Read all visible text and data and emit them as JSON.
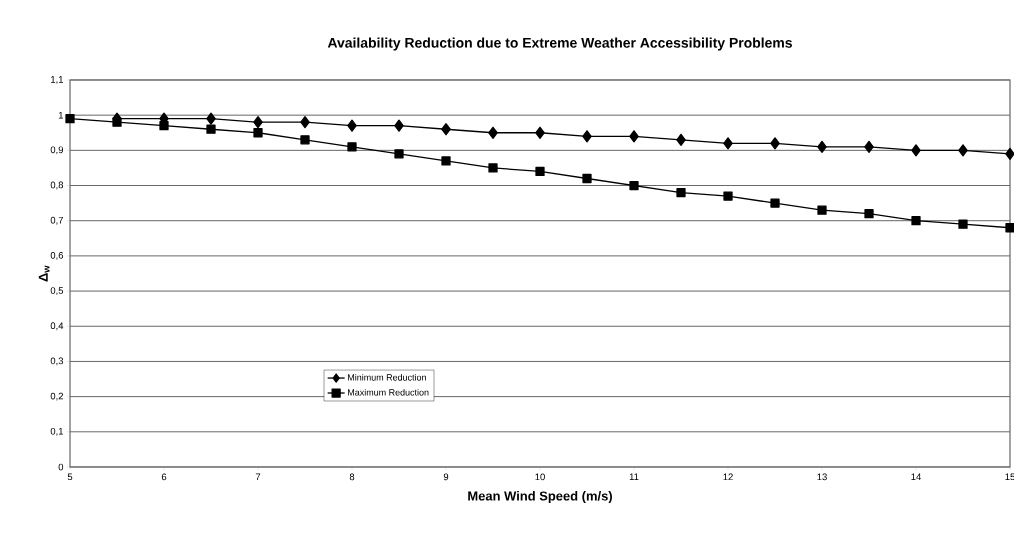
{
  "chart_data": {
    "type": "line",
    "title": "Availability Reduction due to Extreme Weather Accessibility Problems",
    "xlabel": "Mean Wind Speed (m/s)",
    "ylabel": "Δ$_{w}$",
    "x": [
      5,
      5.5,
      6,
      6.5,
      7,
      7.5,
      8,
      8.5,
      9,
      9.5,
      10,
      10.5,
      11,
      11.5,
      12,
      12.5,
      13,
      13.5,
      14,
      14.5,
      15
    ],
    "series": [
      {
        "name": "Minimum Reduction",
        "color": "#000000",
        "marker": "diamond",
        "values": [
          null,
          0.99,
          0.99,
          0.99,
          0.98,
          0.98,
          0.97,
          0.97,
          0.96,
          0.95,
          0.95,
          0.94,
          0.94,
          0.93,
          0.92,
          0.92,
          0.91,
          0.91,
          0.9,
          0.9,
          0.89
        ]
      },
      {
        "name": "Maximum Reduction",
        "color": "#000000",
        "marker": "square",
        "values": [
          0.99,
          0.98,
          0.97,
          0.96,
          0.95,
          0.93,
          0.91,
          0.89,
          0.87,
          0.85,
          0.84,
          0.82,
          0.8,
          0.78,
          0.77,
          0.75,
          0.73,
          0.72,
          0.7,
          0.69,
          0.68
        ]
      }
    ],
    "xlim": [
      5,
      15
    ],
    "ylim": [
      0,
      1.1
    ],
    "xticks": [
      5,
      6,
      7,
      8,
      9,
      10,
      11,
      12,
      13,
      14,
      15
    ],
    "yticks": [
      0,
      {
        "value": 0.1,
        "label": "0,1"
      },
      {
        "value": 0.2,
        "label": "0,2"
      },
      {
        "value": 0.3,
        "label": "0,3"
      },
      {
        "value": 0.4,
        "label": "0,4"
      },
      {
        "value": 0.5,
        "label": "0,5"
      },
      {
        "value": 0.6,
        "label": "0,6"
      },
      {
        "value": 0.7,
        "label": "0,7"
      },
      {
        "value": 0.8,
        "label": "0,8"
      },
      {
        "value": 0.9,
        "label": "0,9"
      },
      1,
      {
        "value": 1.1,
        "label": "1,1"
      }
    ],
    "grid": "y",
    "legend": "bottom left",
    "line_style": "solid"
  }
}
